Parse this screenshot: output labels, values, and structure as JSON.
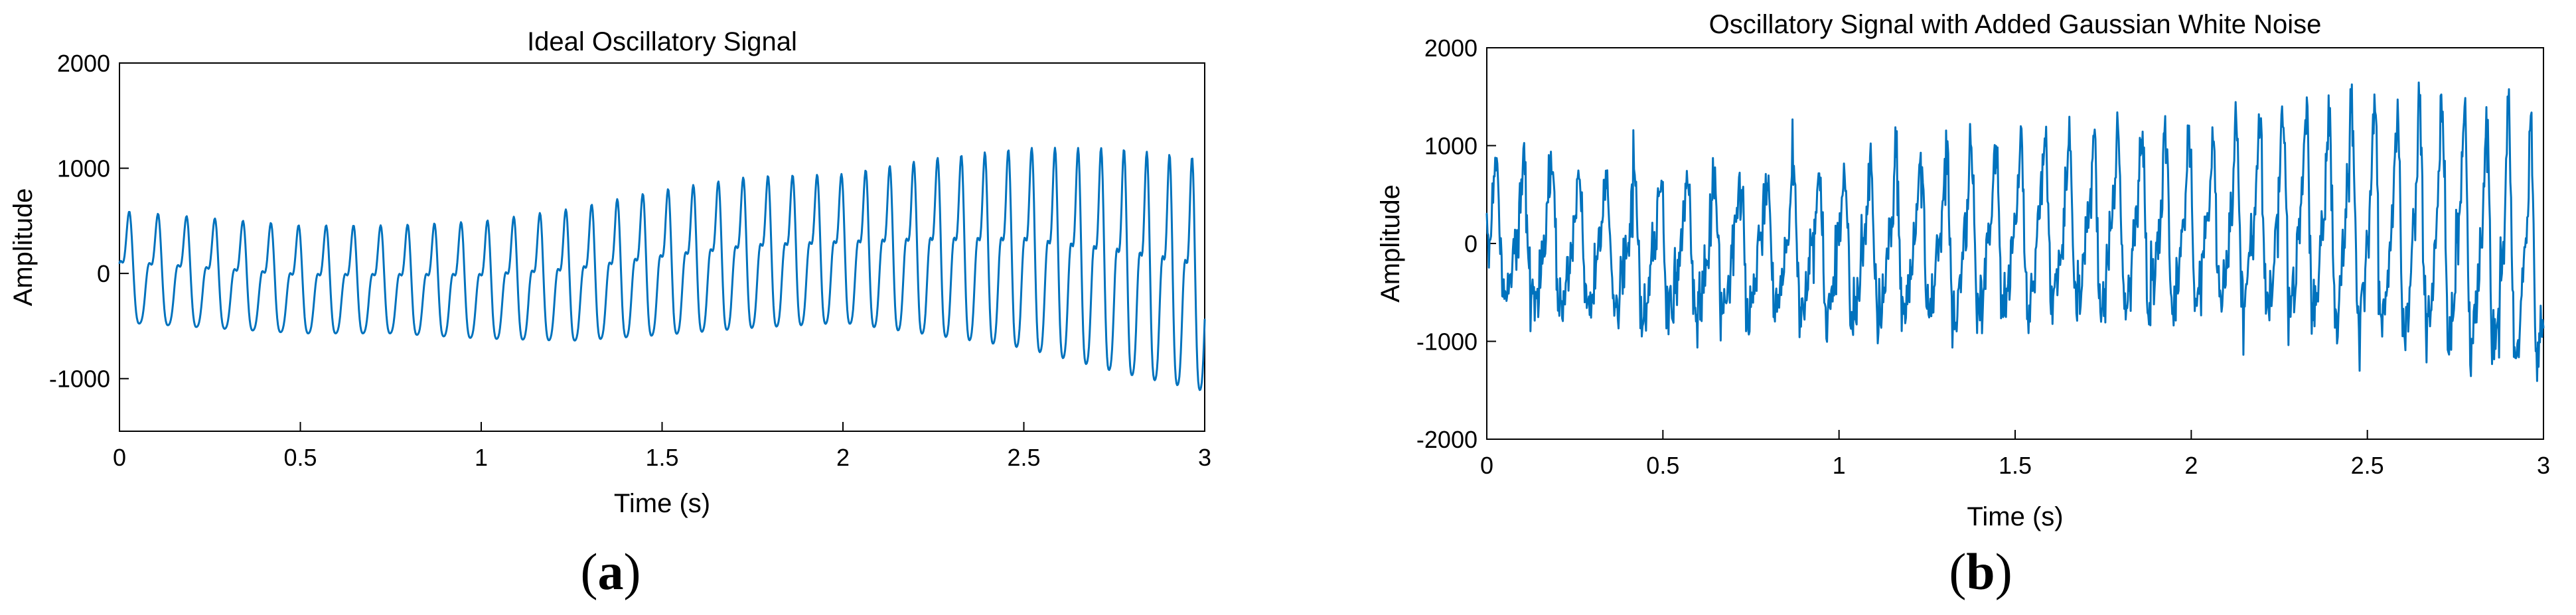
{
  "chart_data": [
    {
      "type": "line",
      "title": "Ideal Oscillatory Signal",
      "xlabel": "Time (s)",
      "ylabel": "Amplitude",
      "xlim": [
        0,
        3
      ],
      "ylim": [
        -1500,
        2000
      ],
      "xticks": [
        0,
        0.5,
        1,
        1.5,
        2,
        2.5,
        3
      ],
      "xtick_labels": [
        "0",
        "0.5",
        "1",
        "1.5",
        "2",
        "2.5",
        "3"
      ],
      "yticks": [
        -1000,
        0,
        1000,
        2000
      ],
      "ytick_labels": [
        "-1000",
        "0",
        "1000",
        "2000"
      ],
      "grid": false,
      "color": "#0072BD",
      "panel_label": "a",
      "envelope_x": [
        0,
        0.25,
        0.5,
        0.75,
        1,
        1.25,
        1.5,
        1.75,
        2,
        2.25,
        2.5,
        2.75,
        3
      ],
      "envelope_upper": [
        600,
        530,
        460,
        460,
        500,
        620,
        800,
        930,
        950,
        1100,
        1200,
        1200,
        1100
      ],
      "envelope_lower": [
        -600,
        -650,
        -700,
        -700,
        -760,
        -800,
        -760,
        -700,
        -650,
        -800,
        -950,
        -1200,
        -1400
      ],
      "series": [
        {
          "values": []
        }
      ]
    },
    {
      "type": "line",
      "title": "Oscillatory Signal with Added Gaussian White Noise",
      "xlabel": "Time (s)",
      "ylabel": "Amplitude",
      "xlim": [
        0,
        3
      ],
      "ylim": [
        -2000,
        2000
      ],
      "xticks": [
        0,
        0.5,
        1,
        1.5,
        2,
        2.5,
        3
      ],
      "xtick_labels": [
        "0",
        "0.5",
        "1",
        "1.5",
        "2",
        "2.5",
        "3"
      ],
      "yticks": [
        -2000,
        -1000,
        0,
        1000,
        2000
      ],
      "ytick_labels": [
        "-2000",
        "-1000",
        "0",
        "1000",
        "2000"
      ],
      "grid": false,
      "color": "#0072BD",
      "panel_label": "b",
      "envelope_x": [
        0,
        0.25,
        0.5,
        0.75,
        1,
        1.25,
        1.5,
        1.75,
        2,
        2.25,
        2.5,
        2.75,
        3
      ],
      "envelope_upper": [
        800,
        700,
        600,
        650,
        750,
        850,
        1050,
        1100,
        1100,
        1250,
        1400,
        1350,
        1200
      ],
      "envelope_lower": [
        -800,
        -850,
        -900,
        -900,
        -950,
        -1000,
        -950,
        -900,
        -900,
        -1000,
        -1150,
        -1350,
        -1600
      ],
      "series": [
        {
          "values": []
        }
      ]
    }
  ]
}
